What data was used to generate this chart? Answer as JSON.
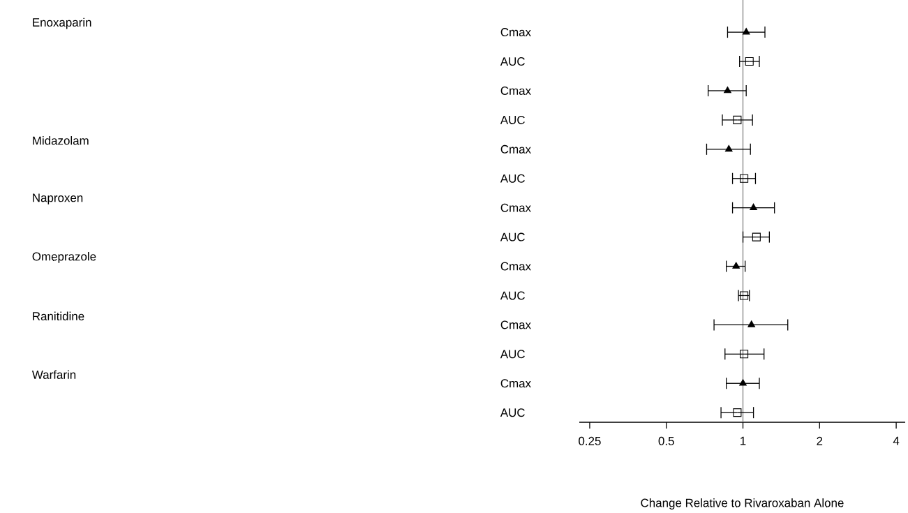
{
  "chart_data": {
    "type": "scatter",
    "orientation": "horizontal",
    "xlabel": "Change Relative to Rivaroxaban Alone",
    "categories": [
      "Cmax",
      "AUC",
      "Cmax",
      "AUC",
      "Cmax",
      "AUC",
      "Cmax",
      "AUC",
      "Cmax",
      "AUC",
      "Cmax",
      "AUC",
      "Cmax",
      "AUC"
    ],
    "series": [
      {
        "color": "#000000",
        "marker": "triangle",
        "values": [
          1.03,
          null,
          0.87,
          null,
          0.88,
          null,
          1.1,
          null,
          0.94,
          null,
          1.08,
          null,
          1.0,
          null
        ],
        "errors": [
          [
            0.87,
            1.22
          ],
          null,
          [
            0.73,
            1.03
          ],
          null,
          [
            0.72,
            1.07
          ],
          null,
          [
            0.91,
            1.33
          ],
          null,
          [
            0.86,
            1.02
          ],
          null,
          [
            0.77,
            1.5
          ],
          null,
          [
            0.86,
            1.16
          ],
          null
        ]
      },
      {
        "color": "#000000",
        "marker": "square",
        "values": [
          null,
          1.06,
          null,
          0.95,
          null,
          1.01,
          null,
          1.13,
          null,
          1.01,
          null,
          1.01,
          null,
          0.95
        ],
        "errors": [
          null,
          [
            0.97,
            1.16
          ],
          null,
          [
            0.83,
            1.09
          ],
          null,
          [
            0.91,
            1.12
          ],
          null,
          [
            1.0,
            1.27
          ],
          null,
          [
            0.96,
            1.06
          ],
          null,
          [
            0.85,
            1.21
          ],
          null,
          [
            0.82,
            1.1
          ]
        ]
      }
    ],
    "annotations": [
      "Enoxaparin",
      null,
      "Midazolam",
      "Naproxen",
      "Omeprazole",
      "Ranitidine",
      "Warfarin"
    ],
    "log": "x",
    "xlim": [
      0.2275,
      4.34
    ],
    "xticks": [
      0.25,
      0.5,
      1,
      2,
      4
    ],
    "ref_lines": [
      {
        "axis": "x",
        "value": 1,
        "color": "#808080"
      }
    ],
    "grid": false
  }
}
